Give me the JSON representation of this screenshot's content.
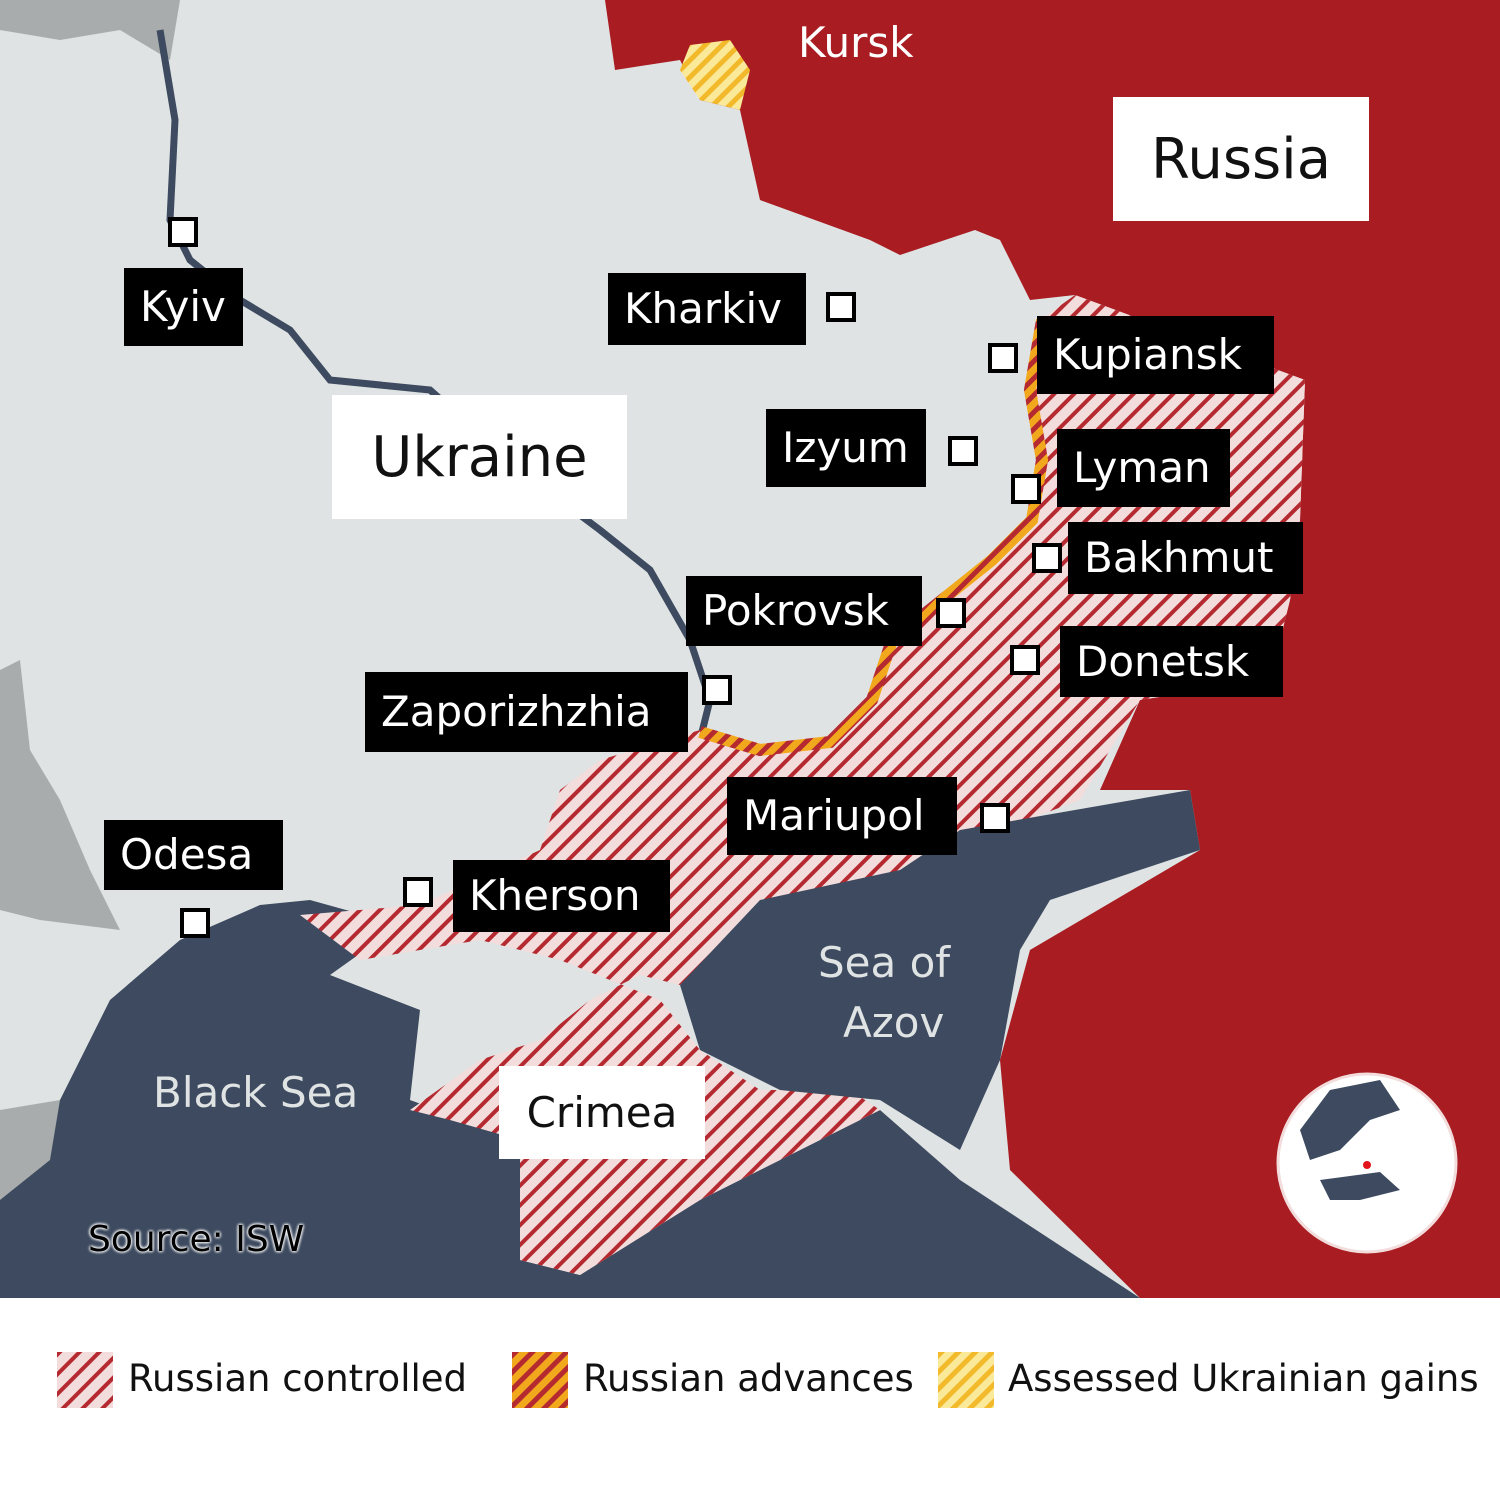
{
  "colors": {
    "ukraine": "#dfe3e3",
    "russia": "#a81c22",
    "sea": "#3d4a5f",
    "hatch": "#b52a30",
    "advance": "#f2a81d",
    "gains": "#f5d94a"
  },
  "regions": {
    "russia": "Russia",
    "ukraine": "Ukraine",
    "crimea": "Crimea",
    "kursk": "Kursk",
    "sea_of_azov_line1": "Sea of",
    "sea_of_azov_line2": "Azov",
    "black_sea": "Black Sea"
  },
  "cities": [
    "Kyiv",
    "Kharkiv",
    "Kupiansk",
    "Izyum",
    "Lyman",
    "Bakhmut",
    "Pokrovsk",
    "Donetsk",
    "Zaporizhzhia",
    "Mariupol",
    "Odesa",
    "Kherson"
  ],
  "source": "Source: ISW",
  "legend": [
    {
      "label": "Russian controlled",
      "icon": "red-hatch"
    },
    {
      "label": "Russian advances",
      "icon": "red-orange-hatch"
    },
    {
      "label": "Assessed Ukrainian gains",
      "icon": "yellow-hatch"
    }
  ],
  "locator": {
    "icon": "globe-locator-icon",
    "marker_color": "#e3131b"
  }
}
